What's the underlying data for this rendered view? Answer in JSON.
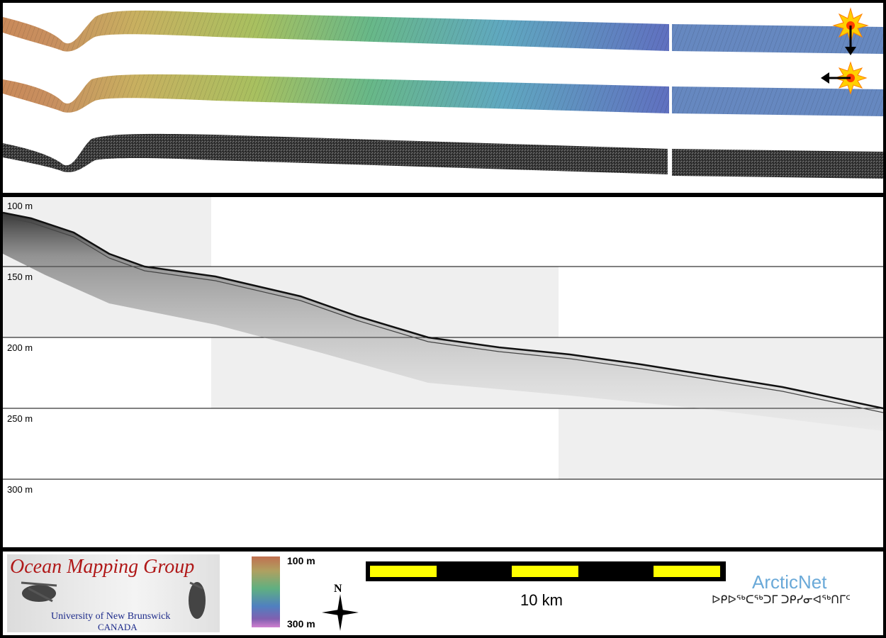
{
  "profile": {
    "depth_labels": [
      "100 m",
      "150 m",
      "200 m",
      "250 m",
      "300 m"
    ]
  },
  "legend": {
    "group_name": "Ocean Mapping Group",
    "university": "University of New Brunswick",
    "country": "CANADA",
    "colorbar_top": "100 m",
    "colorbar_bottom": "300 m",
    "north_label": "N",
    "scale_label": "10 km",
    "partner_name": "ArcticNet",
    "partner_inuktitut": "ᐅᑭᐅᖅᑕᖅᑐᒥ ᑐᑭᓯᓂᐊᖅᑎᒥᑦ"
  },
  "colors": {
    "scale_bar_fill": "#ffff00",
    "shallow": "#c98a5a",
    "mid": "#a8c060",
    "deep": "#6070c0",
    "arcticnet": "#6aa9d8",
    "omg_title": "#b01818",
    "omg_subtitle": "#1c2a8a"
  }
}
